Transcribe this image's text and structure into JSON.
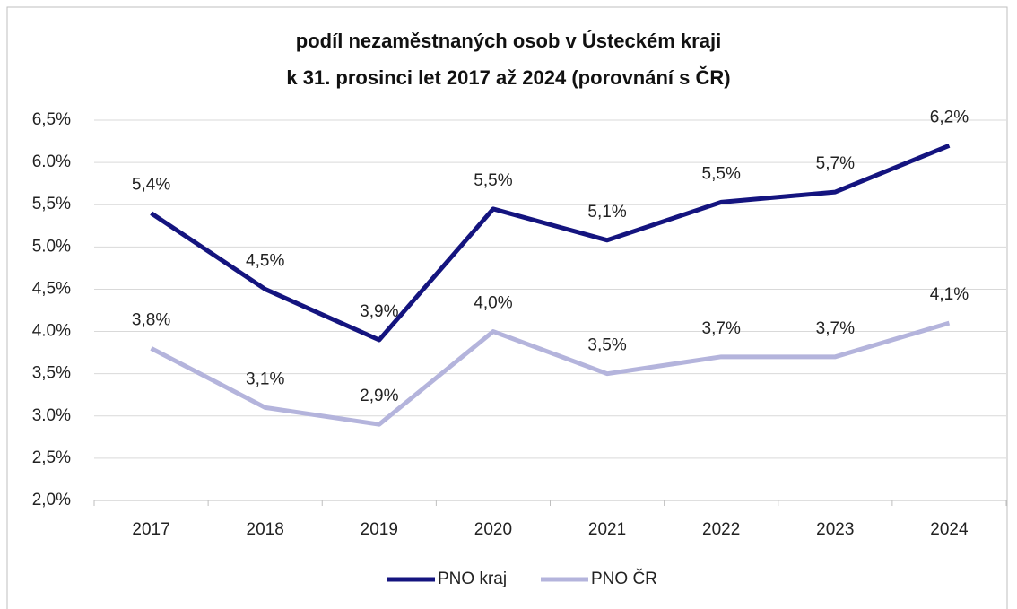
{
  "chart_data": {
    "type": "line",
    "title": [
      "podíl nezaměstnaných osob v Ústeckém kraji",
      "k 31. prosinci let 2017 až 2024 (porovnání s ČR)"
    ],
    "categories": [
      "2017",
      "2018",
      "2019",
      "2020",
      "2021",
      "2022",
      "2023",
      "2024"
    ],
    "series": [
      {
        "name": "PNO kraj",
        "color": "#14147f",
        "values": [
          5.4,
          4.5,
          3.9,
          5.45,
          5.08,
          5.53,
          5.65,
          6.2
        ],
        "value_labels": [
          "5,4%",
          "4,5%",
          "3,9%",
          "5,5%",
          "5,1%",
          "5,5%",
          "5,7%",
          "6,2%"
        ]
      },
      {
        "name": "PNO ČR",
        "color": "#b4b4dc",
        "values": [
          3.8,
          3.1,
          2.9,
          4.0,
          3.5,
          3.7,
          3.7,
          4.1
        ],
        "value_labels": [
          "3,8%",
          "3,1%",
          "2,9%",
          "4,0%",
          "3,5%",
          "3,7%",
          "3,7%",
          "4,1%"
        ]
      }
    ],
    "ylim": [
      2.0,
      6.5
    ],
    "yticks": [
      {
        "value": 2.0,
        "label": "2,0%"
      },
      {
        "value": 2.5,
        "label": "2,5%"
      },
      {
        "value": 3.0,
        "label": "3.0%"
      },
      {
        "value": 3.5,
        "label": "3,5%"
      },
      {
        "value": 4.0,
        "label": "4.0%"
      },
      {
        "value": 4.5,
        "label": "4,5%"
      },
      {
        "value": 5.0,
        "label": "5.0%"
      },
      {
        "value": 5.5,
        "label": "5,5%"
      },
      {
        "value": 6.0,
        "label": "6.0%"
      },
      {
        "value": 6.5,
        "label": "6,5%"
      }
    ],
    "grid": true,
    "legend": "bottom"
  }
}
